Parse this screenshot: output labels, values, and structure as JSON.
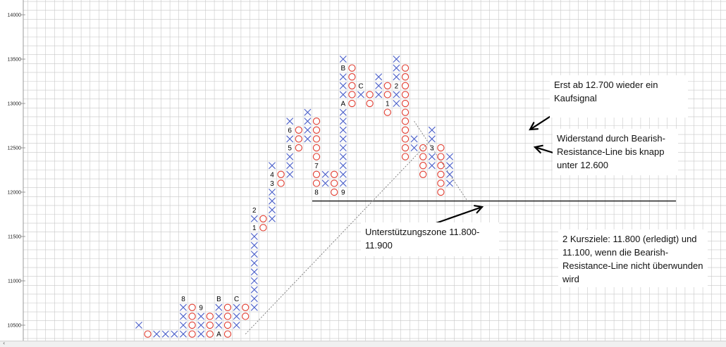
{
  "chart_data": {
    "type": "point-and-figure",
    "box_size": 100,
    "y_range": [
      10400,
      14100
    ],
    "y_ticks": [
      10500,
      11000,
      11500,
      12000,
      12500,
      13000,
      13500,
      14000
    ],
    "grid": true,
    "columns": [
      {
        "type": "X",
        "low": 10500,
        "high": 10500
      },
      {
        "type": "O",
        "low": 10400,
        "high": 10400
      },
      {
        "type": "X",
        "low": 10400,
        "high": 10400
      },
      {
        "type": "X",
        "low": 10400,
        "high": 10400
      },
      {
        "type": "X",
        "low": 10400,
        "high": 10400
      },
      {
        "type": "X",
        "low": 10400,
        "high": 10800
      },
      {
        "type": "O",
        "low": 10400,
        "high": 10700
      },
      {
        "type": "X",
        "low": 10400,
        "high": 10700
      },
      {
        "type": "O",
        "low": 10400,
        "high": 10600
      },
      {
        "type": "X",
        "low": 10400,
        "high": 10800
      },
      {
        "type": "O",
        "low": 10400,
        "high": 10700
      },
      {
        "type": "X",
        "low": 10500,
        "high": 10800
      },
      {
        "type": "O",
        "low": 10600,
        "high": 10700
      },
      {
        "type": "X",
        "low": 10700,
        "high": 11800
      },
      {
        "type": "O",
        "low": 11600,
        "high": 11700
      },
      {
        "type": "X",
        "low": 11700,
        "high": 12300
      },
      {
        "type": "O",
        "low": 12100,
        "high": 12200
      },
      {
        "type": "X",
        "low": 12200,
        "high": 12800
      },
      {
        "type": "O",
        "low": 12500,
        "high": 12700
      },
      {
        "type": "X",
        "low": 12600,
        "high": 12900
      },
      {
        "type": "O",
        "low": 12000,
        "high": 12800
      },
      {
        "type": "X",
        "low": 12100,
        "high": 12200
      },
      {
        "type": "O",
        "low": 12000,
        "high": 12200
      },
      {
        "type": "X",
        "low": 12100,
        "high": 13500
      },
      {
        "type": "O",
        "low": 13000,
        "high": 13400
      },
      {
        "type": "X",
        "low": 13100,
        "high": 13200
      },
      {
        "type": "O",
        "low": 13000,
        "high": 13100
      },
      {
        "type": "X",
        "low": 13100,
        "high": 13300
      },
      {
        "type": "O",
        "low": 12900,
        "high": 13200
      },
      {
        "type": "X",
        "low": 13000,
        "high": 13500
      },
      {
        "type": "O",
        "low": 12400,
        "high": 13400
      },
      {
        "type": "X",
        "low": 12500,
        "high": 12600
      },
      {
        "type": "O",
        "low": 12200,
        "high": 12500
      },
      {
        "type": "X",
        "low": 12300,
        "high": 12700
      },
      {
        "type": "O",
        "low": 12000,
        "high": 12500
      },
      {
        "type": "X",
        "low": 12100,
        "high": 12400
      }
    ],
    "month_markers": [
      {
        "label": "8",
        "col": 5,
        "price": 10800
      },
      {
        "label": "9",
        "col": 7,
        "price": 10700
      },
      {
        "label": "A",
        "col": 9,
        "price": 10400
      },
      {
        "label": "B",
        "col": 9,
        "price": 10800
      },
      {
        "label": "C",
        "col": 11,
        "price": 10800
      },
      {
        "label": "1",
        "col": 13,
        "price": 11600
      },
      {
        "label": "2",
        "col": 13,
        "price": 11800
      },
      {
        "label": "3",
        "col": 15,
        "price": 12100
      },
      {
        "label": "4",
        "col": 15,
        "price": 12200
      },
      {
        "label": "5",
        "col": 17,
        "price": 12500
      },
      {
        "label": "6",
        "col": 17,
        "price": 12700
      },
      {
        "label": "7",
        "col": 20,
        "price": 12300
      },
      {
        "label": "8",
        "col": 20,
        "price": 12000
      },
      {
        "label": "9",
        "col": 23,
        "price": 12000
      },
      {
        "label": "A",
        "col": 23,
        "price": 13000
      },
      {
        "label": "B",
        "col": 23,
        "price": 13400
      },
      {
        "label": "C",
        "col": 25,
        "price": 13200
      },
      {
        "label": "1",
        "col": 28,
        "price": 13000
      },
      {
        "label": "2",
        "col": 29,
        "price": 13200
      },
      {
        "label": "3",
        "col": 33,
        "price": 12500
      }
    ],
    "support_line_price": 11900,
    "bearish_resistance_line": {
      "from": {
        "col": 31,
        "price": 12800
      },
      "to": {
        "col": 37,
        "price": 11900
      }
    },
    "bullish_support_line": {
      "from": {
        "col": 12,
        "price": 10400
      },
      "to": {
        "col": 33,
        "price": 12600
      }
    }
  },
  "annotations": {
    "buy_signal": "Erst ab 12.700 wieder ein Kaufsignal",
    "resistance": "Widerstand durch Bearish-Resistance-Line bis knapp unter 12.600",
    "support_zone": "Unterstützungszone 11.800-11.900",
    "targets": "2 Kursziele: 11.800 (erledigt) und 11.100, wenn die Bearish-Resistance-Line nicht überwunden wird"
  },
  "colors": {
    "x_mark": "#4a5fc9",
    "o_mark": "#e03b2e",
    "grid": "#c8c8c8",
    "support_line": "#111111",
    "trend_line": "#777777"
  }
}
